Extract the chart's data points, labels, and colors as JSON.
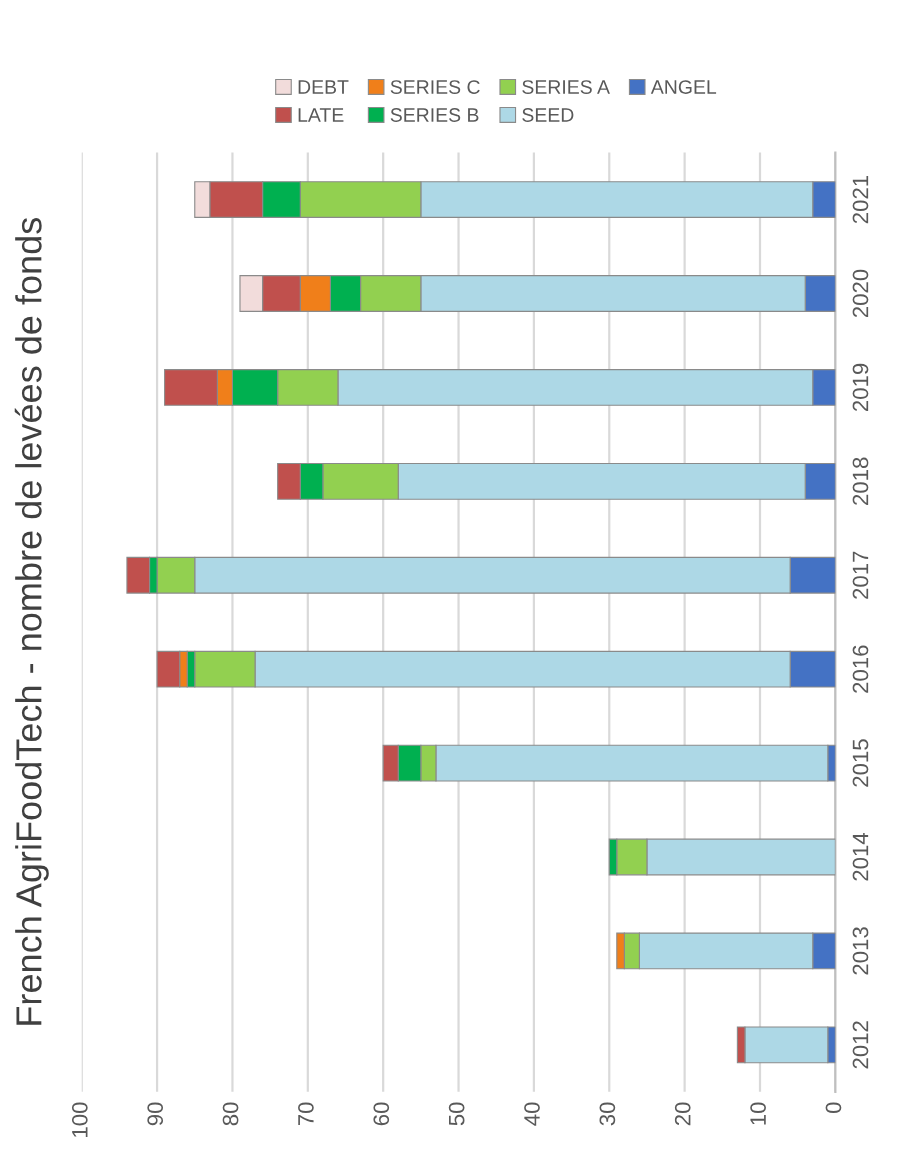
{
  "chart_data": {
    "type": "bar",
    "title": "French AgriFoodTech - nombre de levées de fonds",
    "orientation": "horizontal",
    "stacked": true,
    "categories": [
      "2021",
      "2020",
      "2019",
      "2018",
      "2017",
      "2016",
      "2015",
      "2014",
      "2013",
      "2012"
    ],
    "series": [
      {
        "name": "ANGEL",
        "color": "#4472c4",
        "values": [
          3,
          4,
          3,
          4,
          6,
          6,
          1,
          null,
          3,
          1
        ]
      },
      {
        "name": "SEED",
        "color": "#add8e6",
        "values": [
          52,
          51,
          63,
          54,
          79,
          71,
          52,
          25,
          23,
          11
        ]
      },
      {
        "name": "SERIES A",
        "color": "#92d050",
        "values": [
          16,
          8,
          8,
          10,
          5,
          8,
          2,
          4,
          2,
          null
        ]
      },
      {
        "name": "SERIES B",
        "color": "#00b050",
        "values": [
          5,
          4,
          6,
          3,
          1,
          1,
          3,
          1,
          null,
          null
        ]
      },
      {
        "name": "SERIES C",
        "color": "#f07f1a",
        "values": [
          null,
          4,
          2,
          null,
          null,
          1,
          null,
          null,
          1,
          null
        ]
      },
      {
        "name": "LATE",
        "color": "#c0504d",
        "values": [
          7,
          5,
          7,
          3,
          3,
          3,
          2,
          null,
          null,
          1
        ]
      },
      {
        "name": "DEBT",
        "color": "#f2dcdb",
        "values": [
          2,
          3,
          null,
          null,
          null,
          null,
          null,
          null,
          null,
          null
        ]
      }
    ],
    "xlim": [
      100,
      0
    ],
    "xticks": [
      0,
      10,
      20,
      30,
      40,
      50,
      60,
      70,
      80,
      90,
      100
    ],
    "grid": "x",
    "legend": "top"
  }
}
